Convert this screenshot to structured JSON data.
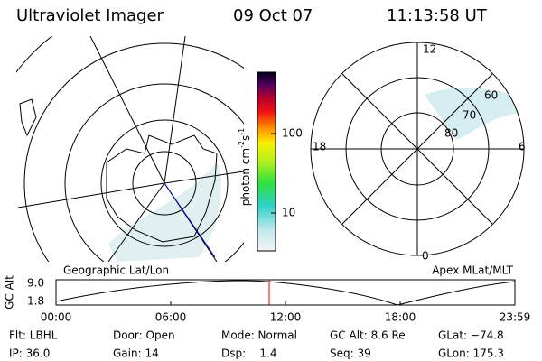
{
  "header": {
    "instrument": "Ultraviolet Imager",
    "date": "09 Oct 07",
    "time": "11:13:58 UT"
  },
  "colorbar": {
    "label": {
      "base": "photon cm",
      "exp1": "-2",
      "unit2": "s",
      "exp2": "-1"
    },
    "ticks": [
      "100",
      "10"
    ]
  },
  "geographic_map": {
    "label": "Geographic Lat/Lon"
  },
  "magnetic_map": {
    "label": "Apex MLat/MLT",
    "mlt_labels": [
      "12",
      "18",
      "6",
      "0"
    ],
    "mlat_labels": [
      "60",
      "70",
      "80"
    ]
  },
  "altitude_plot": {
    "ylabel": "GC Alt",
    "yticks": [
      "9.0",
      "1.8"
    ],
    "xticks": [
      "00:00",
      "06:00",
      "12:00",
      "18:00",
      "23:59"
    ]
  },
  "footer": {
    "rows": [
      [
        "Flt: LBHL",
        "Door: Open",
        "Mode: Normal",
        "GC Alt: 8.6 Re",
        "GLat: −74.8"
      ],
      [
        "IP: 36.0",
        "Gain: 14",
        "Dsp:    1.4",
        "Seq: 39",
        "GLon: 175.3"
      ]
    ]
  }
}
